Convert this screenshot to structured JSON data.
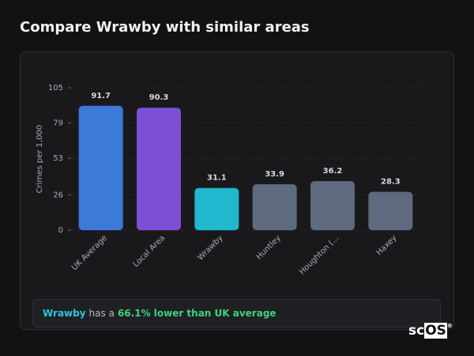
{
  "chart_data": {
    "type": "bar",
    "title": "Compare Wrawby with similar areas",
    "y_label": "Crimes per 1,000",
    "categories": [
      "UK Average",
      "Local Area",
      "Wrawby",
      "Huntley",
      "Houghton (...",
      "Haxey"
    ],
    "values": [
      91.7,
      90.3,
      31.1,
      33.9,
      36.2,
      28.3
    ],
    "colors": [
      "#3b7ad9",
      "#7a4fd5",
      "#21b7cf",
      "#5e6a7d",
      "#5e6a7d",
      "#5e6a7d"
    ],
    "ylim": [
      0,
      105
    ],
    "yticks": [
      0,
      26,
      53,
      79,
      105
    ],
    "grid": true
  },
  "summary": {
    "area": "Wrawby",
    "text": "has a",
    "highlight": "66.1% lower than UK average"
  },
  "logo": {
    "text": "sc",
    "box": "OS",
    "mark": "®"
  }
}
